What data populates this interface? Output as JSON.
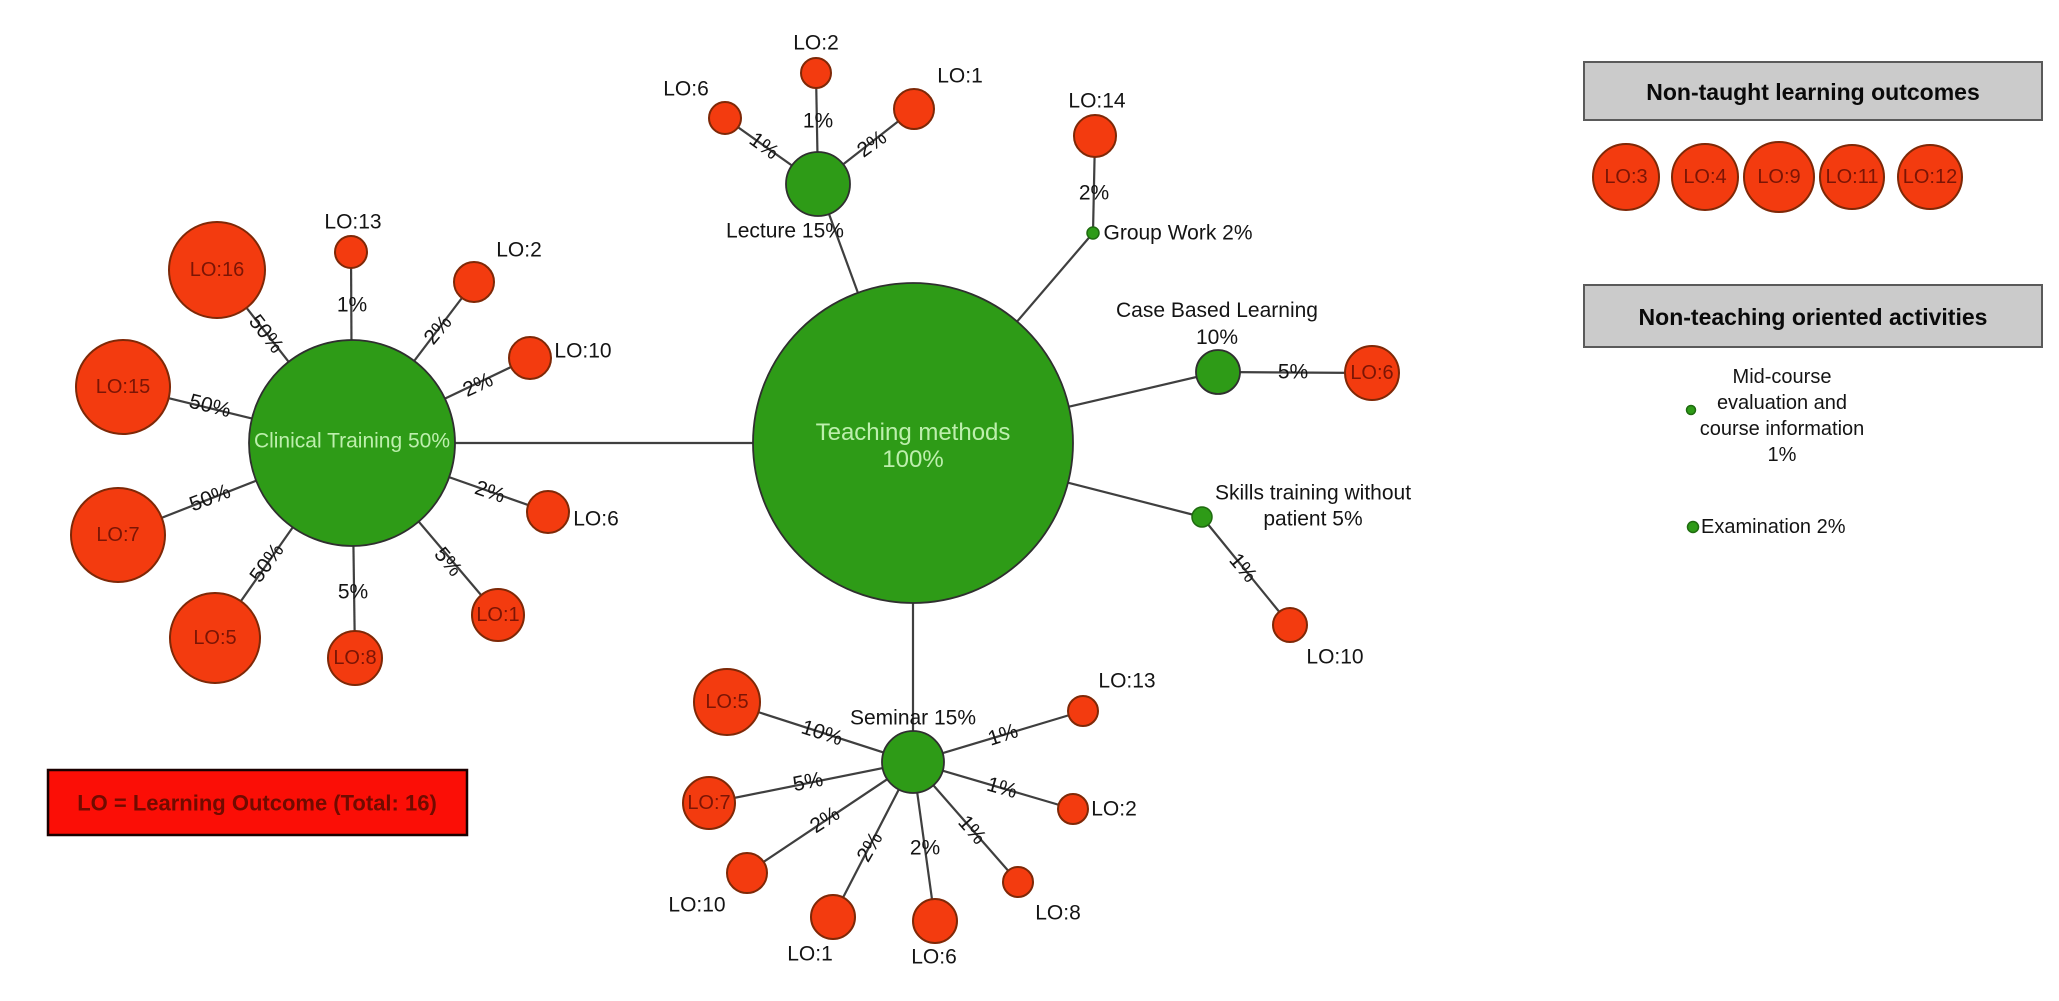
{
  "legend": {
    "text": "LO = Learning Outcome (Total: 16)"
  },
  "colors": {
    "method_fill": "#2E9B17",
    "method_label": "#BDEFAD",
    "outcome_fill": "#F33B0F",
    "outcome_border": "#7E2807",
    "outcome_label": "#7B1505",
    "edge": "#3F3F3F",
    "header_bg": "#CBCBCB",
    "legend_bg": "#FB0E06",
    "legend_text": "#700B00",
    "text": "#141414"
  },
  "panels": {
    "non_taught": {
      "header": "Non-taught learning outcomes",
      "items": [
        "LO:3",
        "LO:4",
        "LO:9",
        "LO:11",
        "LO:12"
      ]
    },
    "non_teaching": {
      "header": "Non-teaching oriented activities",
      "items": [
        {
          "lines": [
            "Mid-course",
            "evaluation and",
            "course information",
            "1%"
          ]
        },
        {
          "lines": [
            "Examination 2%"
          ]
        }
      ]
    }
  },
  "graph": {
    "methods": [
      {
        "id": "teaching",
        "lines": [
          "Teaching methods",
          "100%"
        ],
        "label_inside": true
      },
      {
        "id": "lecture",
        "lines": [
          "Lecture 15%"
        ],
        "label_inside": false
      },
      {
        "id": "clinical",
        "lines": [
          "Clinical Training 50%"
        ],
        "label_inside": true
      },
      {
        "id": "groupwork",
        "lines": [
          "Group Work 2%"
        ],
        "label_inside": false
      },
      {
        "id": "cbl",
        "lines": [
          "Case Based Learning",
          "10%"
        ],
        "label_inside": false
      },
      {
        "id": "skills",
        "lines": [
          "Skills training without",
          "patient 5%"
        ],
        "label_inside": false
      },
      {
        "id": "seminar",
        "lines": [
          "Seminar 15%"
        ],
        "label_inside": false
      }
    ],
    "outcomes": [
      {
        "id": "lec-lo6",
        "label": "LO:6",
        "label_inside": false
      },
      {
        "id": "lec-lo2",
        "label": "LO:2",
        "label_inside": false
      },
      {
        "id": "lec-lo1",
        "label": "LO:1",
        "label_inside": false
      },
      {
        "id": "gw-lo14",
        "label": "LO:14",
        "label_inside": false
      },
      {
        "id": "cl-lo16",
        "label": "LO:16",
        "label_inside": true
      },
      {
        "id": "cl-lo13",
        "label": "LO:13",
        "label_inside": false
      },
      {
        "id": "cl-lo2",
        "label": "LO:2",
        "label_inside": false
      },
      {
        "id": "cl-lo10",
        "label": "LO:10",
        "label_inside": false
      },
      {
        "id": "cl-lo15",
        "label": "LO:15",
        "label_inside": true
      },
      {
        "id": "cl-lo7",
        "label": "LO:7",
        "label_inside": true
      },
      {
        "id": "cl-lo5",
        "label": "LO:5",
        "label_inside": true
      },
      {
        "id": "cl-lo8",
        "label": "LO:8",
        "label_inside": true
      },
      {
        "id": "cl-lo1",
        "label": "LO:1",
        "label_inside": true
      },
      {
        "id": "cl-lo6",
        "label": "LO:6",
        "label_inside": false
      },
      {
        "id": "cbl-lo6",
        "label": "LO:6",
        "label_inside": true
      },
      {
        "id": "sk-lo10",
        "label": "LO:10",
        "label_inside": false
      },
      {
        "id": "sem-lo5",
        "label": "LO:5",
        "label_inside": true
      },
      {
        "id": "sem-lo7",
        "label": "LO:7",
        "label_inside": true
      },
      {
        "id": "sem-lo10",
        "label": "LO:10",
        "label_inside": false
      },
      {
        "id": "sem-lo1",
        "label": "LO:1",
        "label_inside": false
      },
      {
        "id": "sem-lo6",
        "label": "LO:6",
        "label_inside": false
      },
      {
        "id": "sem-lo8",
        "label": "LO:8",
        "label_inside": false
      },
      {
        "id": "sem-lo2",
        "label": "LO:2",
        "label_inside": false
      },
      {
        "id": "sem-lo13",
        "label": "LO:13",
        "label_inside": false
      }
    ],
    "edges": [
      {
        "from": "teaching",
        "to": "lecture",
        "label": ""
      },
      {
        "from": "teaching",
        "to": "clinical",
        "label": ""
      },
      {
        "from": "teaching",
        "to": "groupwork",
        "label": ""
      },
      {
        "from": "teaching",
        "to": "cbl",
        "label": ""
      },
      {
        "from": "teaching",
        "to": "skills",
        "label": ""
      },
      {
        "from": "teaching",
        "to": "seminar",
        "label": ""
      },
      {
        "from": "lecture",
        "to": "lec-lo6",
        "label": "1%"
      },
      {
        "from": "lecture",
        "to": "lec-lo2",
        "label": "1%"
      },
      {
        "from": "lecture",
        "to": "lec-lo1",
        "label": "2%"
      },
      {
        "from": "groupwork",
        "to": "gw-lo14",
        "label": "2%"
      },
      {
        "from": "clinical",
        "to": "cl-lo16",
        "label": "50%"
      },
      {
        "from": "clinical",
        "to": "cl-lo13",
        "label": "1%"
      },
      {
        "from": "clinical",
        "to": "cl-lo2",
        "label": "2%"
      },
      {
        "from": "clinical",
        "to": "cl-lo10",
        "label": "2%"
      },
      {
        "from": "clinical",
        "to": "cl-lo15",
        "label": "50%"
      },
      {
        "from": "clinical",
        "to": "cl-lo7",
        "label": "50%"
      },
      {
        "from": "clinical",
        "to": "cl-lo5",
        "label": "50%"
      },
      {
        "from": "clinical",
        "to": "cl-lo8",
        "label": "5%"
      },
      {
        "from": "clinical",
        "to": "cl-lo1",
        "label": "5%"
      },
      {
        "from": "clinical",
        "to": "cl-lo6",
        "label": "2%"
      },
      {
        "from": "cbl",
        "to": "cbl-lo6",
        "label": "5%"
      },
      {
        "from": "skills",
        "to": "sk-lo10",
        "label": "1%"
      },
      {
        "from": "seminar",
        "to": "sem-lo5",
        "label": "10%"
      },
      {
        "from": "seminar",
        "to": "sem-lo7",
        "label": "5%"
      },
      {
        "from": "seminar",
        "to": "sem-lo10",
        "label": "2%"
      },
      {
        "from": "seminar",
        "to": "sem-lo1",
        "label": "2%"
      },
      {
        "from": "seminar",
        "to": "sem-lo6",
        "label": "2%"
      },
      {
        "from": "seminar",
        "to": "sem-lo8",
        "label": "1%"
      },
      {
        "from": "seminar",
        "to": "sem-lo2",
        "label": "1%"
      },
      {
        "from": "seminar",
        "to": "sem-lo13",
        "label": "1%"
      }
    ]
  }
}
